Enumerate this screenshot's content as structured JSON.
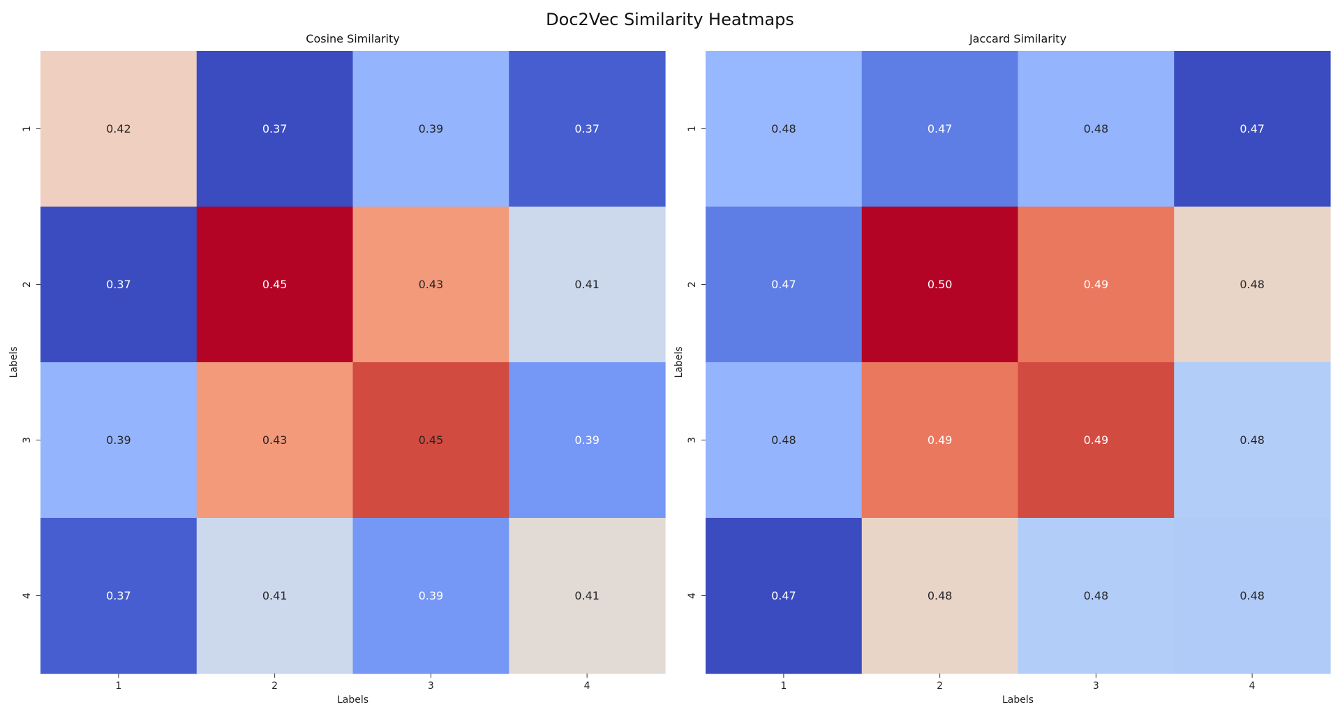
{
  "figure_title": "Doc2Vec Similarity Heatmaps",
  "chart_data": [
    {
      "type": "heatmap",
      "title": "Cosine Similarity",
      "xlabel": "Labels",
      "ylabel": "Labels",
      "x_categories": [
        "1",
        "2",
        "3",
        "4"
      ],
      "y_categories": [
        "1",
        "2",
        "3",
        "4"
      ],
      "values": [
        [
          0.42,
          0.37,
          0.39,
          0.37
        ],
        [
          0.37,
          0.45,
          0.43,
          0.41
        ],
        [
          0.39,
          0.43,
          0.45,
          0.39
        ],
        [
          0.37,
          0.41,
          0.39,
          0.41
        ]
      ],
      "labels": [
        [
          "0.42",
          "0.37",
          "0.39",
          "0.37"
        ],
        [
          "0.37",
          "0.45",
          "0.43",
          "0.41"
        ],
        [
          "0.39",
          "0.43",
          "0.45",
          "0.39"
        ],
        [
          "0.37",
          "0.41",
          "0.39",
          "0.41"
        ]
      ],
      "colors": [
        [
          "#efcfbf",
          "#3b4cc0",
          "#94b4fd",
          "#465ecf"
        ],
        [
          "#3b4cc0",
          "#b40426",
          "#f39a7a",
          "#ccd9ed"
        ],
        [
          "#94b4fd",
          "#f39a7a",
          "#d24b40",
          "#7597f5"
        ],
        [
          "#465ecf",
          "#ccd9ed",
          "#7597f5",
          "#e2dad5"
        ]
      ],
      "text_colors": [
        [
          "#262626",
          "#ffffff",
          "#262626",
          "#ffffff"
        ],
        [
          "#ffffff",
          "#ffffff",
          "#262626",
          "#262626"
        ],
        [
          "#262626",
          "#262626",
          "#262626",
          "#ffffff"
        ],
        [
          "#ffffff",
          "#262626",
          "#ffffff",
          "#262626"
        ]
      ],
      "colormap": "coolwarm",
      "colorbar": false
    },
    {
      "type": "heatmap",
      "title": "Jaccard Similarity",
      "xlabel": "Labels",
      "ylabel": "Labels",
      "x_categories": [
        "1",
        "2",
        "3",
        "4"
      ],
      "y_categories": [
        "1",
        "2",
        "3",
        "4"
      ],
      "values": [
        [
          0.48,
          0.47,
          0.48,
          0.47
        ],
        [
          0.47,
          0.5,
          0.49,
          0.48
        ],
        [
          0.48,
          0.49,
          0.49,
          0.48
        ],
        [
          0.47,
          0.48,
          0.48,
          0.48
        ]
      ],
      "labels": [
        [
          "0.48",
          "0.47",
          "0.48",
          "0.47"
        ],
        [
          "0.47",
          "0.50",
          "0.49",
          "0.48"
        ],
        [
          "0.48",
          "0.49",
          "0.49",
          "0.48"
        ],
        [
          "0.47",
          "0.48",
          "0.48",
          "0.48"
        ]
      ],
      "colors": [
        [
          "#97b8fe",
          "#5e7ee6",
          "#94b4fd",
          "#3b4cc0"
        ],
        [
          "#5e7ee6",
          "#b40426",
          "#ea785e",
          "#e9d5c8"
        ],
        [
          "#94b4fd",
          "#ea785e",
          "#d24b40",
          "#b3cdf9"
        ],
        [
          "#3b4cc0",
          "#e9d5c8",
          "#b3cdf9",
          "#b1cbf9"
        ]
      ],
      "text_colors": [
        [
          "#262626",
          "#ffffff",
          "#262626",
          "#ffffff"
        ],
        [
          "#ffffff",
          "#ffffff",
          "#ffffff",
          "#262626"
        ],
        [
          "#262626",
          "#ffffff",
          "#ffffff",
          "#262626"
        ],
        [
          "#ffffff",
          "#262626",
          "#262626",
          "#262626"
        ]
      ],
      "colormap": "coolwarm",
      "colorbar": false
    }
  ]
}
